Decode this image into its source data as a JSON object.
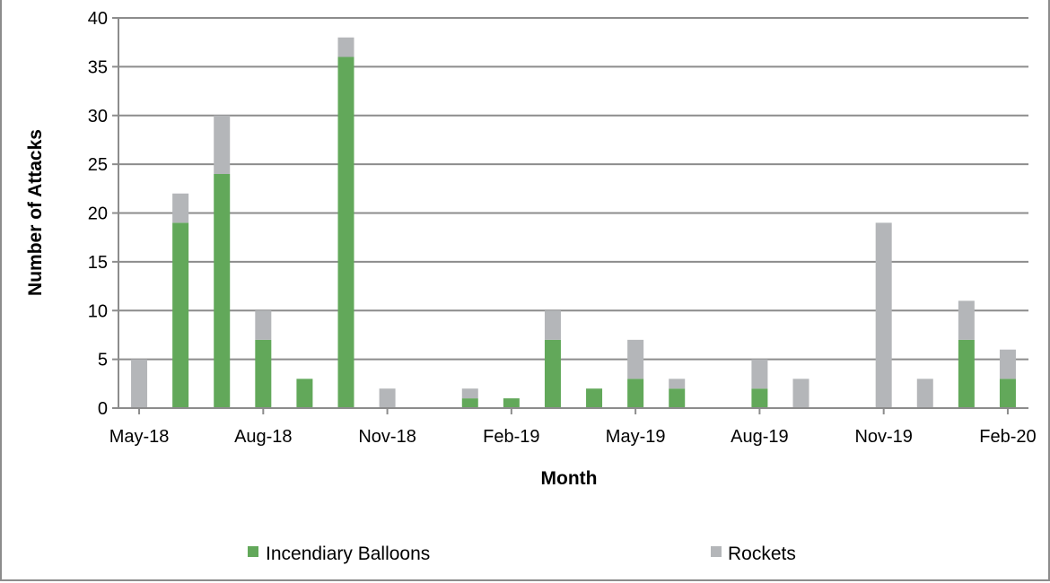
{
  "chart_data": {
    "type": "bar",
    "stacked": true,
    "title": "",
    "xlabel": "Month",
    "ylabel": "Number of Attacks",
    "ylim": [
      0,
      40
    ],
    "yticks": [
      0,
      5,
      10,
      15,
      20,
      25,
      30,
      35,
      40
    ],
    "grid": true,
    "legend_position": "bottom",
    "xtick_labels": [
      "May-18",
      "Aug-18",
      "Nov-18",
      "Feb-19",
      "May-19",
      "Aug-19",
      "Nov-19",
      "Feb-20"
    ],
    "categories": [
      "May-18",
      "Jun-18",
      "Jul-18",
      "Aug-18",
      "Sep-18",
      "Oct-18",
      "Nov-18",
      "Dec-18",
      "Jan-19",
      "Feb-19",
      "Mar-19",
      "Apr-19",
      "May-19",
      "Jun-19",
      "Jul-19",
      "Aug-19",
      "Sep-19",
      "Oct-19",
      "Nov-19",
      "Dec-19",
      "Jan-20",
      "Feb-20"
    ],
    "series": [
      {
        "name": "Incendiary Balloons",
        "color": "#62a85a",
        "values": [
          0,
          19,
          24,
          7,
          3,
          36,
          0,
          0,
          1,
          1,
          7,
          2,
          3,
          2,
          0,
          2,
          0,
          0,
          0,
          0,
          7,
          3
        ]
      },
      {
        "name": "Rockets",
        "color": "#b4b6b9",
        "values": [
          5,
          3,
          6,
          3,
          0,
          2,
          2,
          0,
          1,
          0,
          3,
          0,
          4,
          1,
          0,
          3,
          3,
          0,
          19,
          3,
          4,
          3
        ]
      }
    ]
  }
}
